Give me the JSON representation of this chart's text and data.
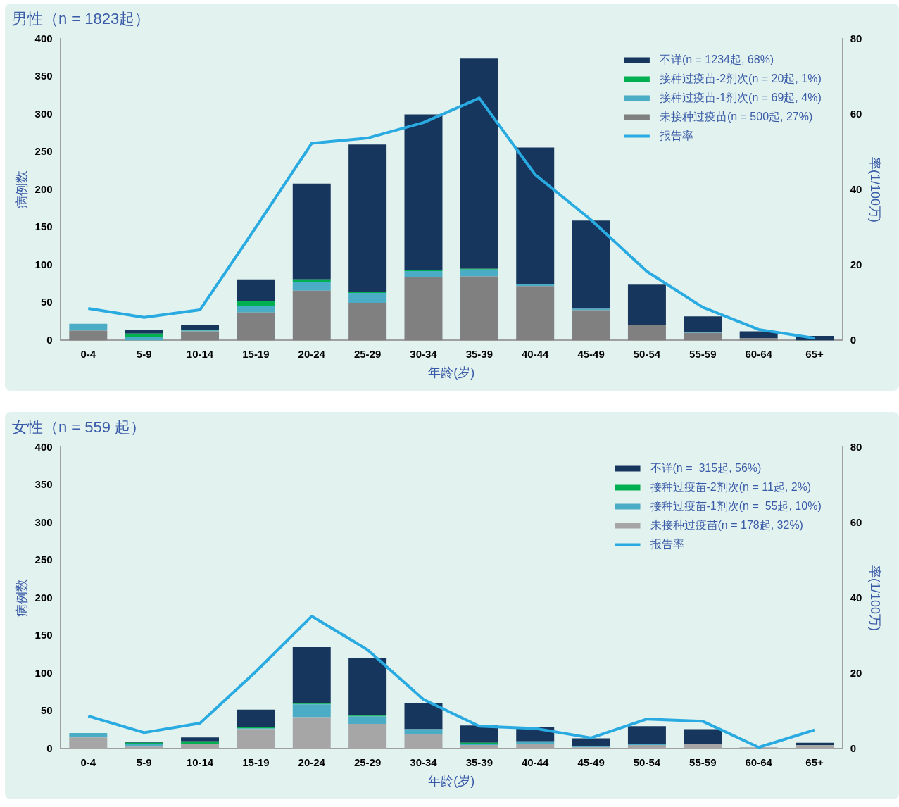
{
  "chart_data": [
    {
      "type": "bar",
      "title": "男性（n = 1823起）",
      "xlabel": "年龄(岁)",
      "ylabel": "病例数",
      "y2label": "率(1/100万)",
      "categories": [
        "0-4",
        "5-9",
        "10-14",
        "15-19",
        "20-24",
        "25-29",
        "30-34",
        "35-39",
        "40-44",
        "45-49",
        "50-54",
        "55-59",
        "60-64",
        "65+"
      ],
      "stacked": true,
      "legend": "top right",
      "ylim": [
        0,
        400
      ],
      "yticks": [
        0,
        50,
        100,
        150,
        200,
        250,
        300,
        350,
        400
      ],
      "y2lim": [
        0,
        80
      ],
      "y2ticks": [
        0,
        20,
        40,
        60,
        80
      ],
      "series": [
        {
          "name": "未接种过疫苗(n = 500起, 27%)",
          "color": "#808080",
          "values": [
            13,
            0,
            12,
            37,
            66,
            50,
            84,
            85,
            72,
            40,
            20,
            10,
            3,
            0
          ]
        },
        {
          "name": "接种过疫苗-1剂次(n = 69起, 4%)",
          "color": "#4bacc6",
          "values": [
            9,
            4,
            1,
            9,
            12,
            13,
            8,
            9,
            3,
            2,
            0,
            1,
            0,
            0
          ]
        },
        {
          "name": "接种过疫苗-2剂次(n = 20起, 1%)",
          "color": "#00b050",
          "values": [
            0,
            5,
            1,
            6,
            3,
            1,
            1,
            1,
            0,
            0,
            0,
            0,
            0,
            0
          ]
        },
        {
          "name": "不详(n = 1234起, 68%)",
          "color": "#17365d",
          "values": [
            0,
            5,
            6,
            29,
            127,
            196,
            207,
            279,
            181,
            117,
            54,
            21,
            9,
            6
          ]
        },
        {
          "name": "报告率",
          "type": "line",
          "axis": "y2",
          "color": "#29abe2",
          "values": [
            8.5,
            6.1,
            8.1,
            30,
            52.3,
            53.7,
            57.8,
            64.3,
            44,
            32,
            18.3,
            8.8,
            2.9,
            0.6
          ]
        }
      ]
    },
    {
      "type": "bar",
      "title": "女性（n = 559 起）",
      "xlabel": "年龄(岁)",
      "ylabel": "病例数",
      "y2label": "率(1/100万)",
      "categories": [
        "0-4",
        "5-9",
        "10-14",
        "15-19",
        "20-24",
        "25-29",
        "30-34",
        "35-39",
        "40-44",
        "45-49",
        "50-54",
        "55-59",
        "60-64",
        "65+"
      ],
      "stacked": true,
      "legend": "top right",
      "ylim": [
        0,
        400
      ],
      "yticks": [
        0,
        50,
        100,
        150,
        200,
        250,
        300,
        350,
        400
      ],
      "y2lim": [
        0,
        80
      ],
      "y2ticks": [
        0,
        20,
        40,
        60,
        80
      ],
      "series": [
        {
          "name": "未接种过疫苗(n = 178起, 32%)",
          "color": "#a6a6a6",
          "values": [
            15,
            3,
            6,
            26,
            42,
            33,
            20,
            5,
            7,
            2,
            5,
            6,
            2,
            5
          ]
        },
        {
          "name": "接种过疫苗-1剂次(n =  55起, 10%)",
          "color": "#4bacc6",
          "values": [
            6,
            3,
            1,
            1,
            17,
            10,
            6,
            2,
            3,
            1,
            1,
            0,
            0,
            0
          ]
        },
        {
          "name": "接种过疫苗-2剂次(n = 11起, 2%)",
          "color": "#00b050",
          "values": [
            0,
            2,
            3,
            2,
            1,
            1,
            0,
            1,
            0,
            0,
            0,
            0,
            0,
            0
          ]
        },
        {
          "name": "不详(n =  315起, 56%)",
          "color": "#17365d",
          "values": [
            0,
            1,
            5,
            23,
            75,
            76,
            35,
            23,
            19,
            11,
            24,
            20,
            0,
            3
          ]
        },
        {
          "name": "报告率",
          "type": "line",
          "axis": "y2",
          "color": "#29abe2",
          "values": [
            8.7,
            4.3,
            6.8,
            20.5,
            35.2,
            26.3,
            13.1,
            6,
            5.4,
            2.9,
            7.9,
            7.3,
            0.4,
            5
          ]
        }
      ]
    }
  ]
}
